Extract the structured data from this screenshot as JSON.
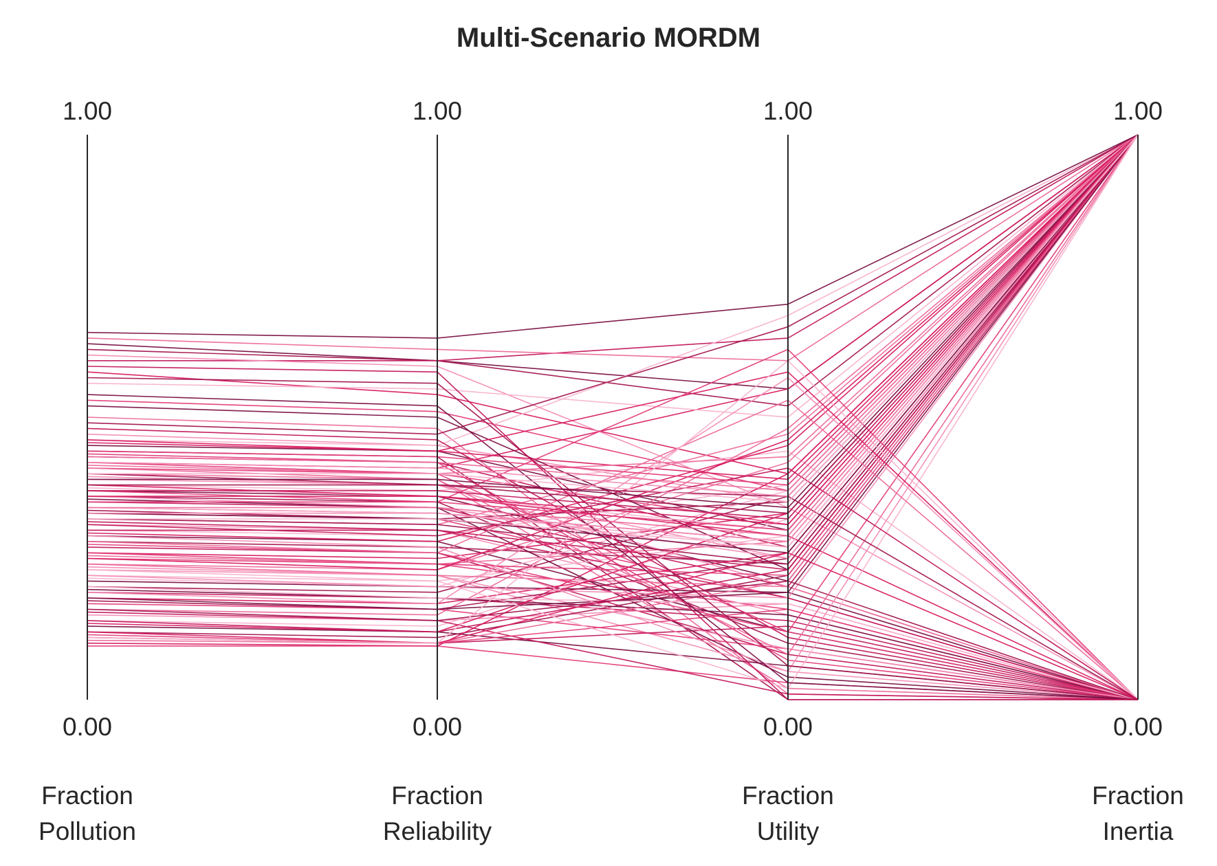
{
  "chart_data": {
    "type": "parallel_coordinates",
    "title": "Multi-Scenario MORDM",
    "axes": [
      {
        "name": [
          "Fraction",
          "Pollution"
        ],
        "range": [
          0,
          1
        ],
        "max_label": "1.00",
        "min_label": "0.00"
      },
      {
        "name": [
          "Fraction",
          "Reliability"
        ],
        "range": [
          0,
          1
        ],
        "max_label": "1.00",
        "min_label": "0.00"
      },
      {
        "name": [
          "Fraction",
          "Utility"
        ],
        "range": [
          0,
          1
        ],
        "max_label": "1.00",
        "min_label": "0.00"
      },
      {
        "name": [
          "Fraction",
          "Inertia"
        ],
        "range": [
          0,
          1
        ],
        "max_label": "1.00",
        "min_label": "0.00"
      }
    ],
    "colors": [
      "#7a1144",
      "#a3164f",
      "#c2185b",
      "#d81b60",
      "#e33d7a",
      "#ec6a9a",
      "#f38db5",
      "#f8b3cd"
    ],
    "lines": [
      [
        0.63,
        0.6,
        0.55,
        1.0
      ],
      [
        0.62,
        0.6,
        0.52,
        1.0
      ],
      [
        0.6,
        0.6,
        0.64,
        1.0
      ],
      [
        0.58,
        0.54,
        0.4,
        1.0
      ],
      [
        0.53,
        0.51,
        0.37,
        1.0
      ],
      [
        0.5,
        0.48,
        0.01,
        0.0
      ],
      [
        0.47,
        0.45,
        0.35,
        1.0
      ],
      [
        0.46,
        0.45,
        0.68,
        1.0
      ],
      [
        0.45,
        0.44,
        0.3,
        1.0
      ],
      [
        0.44,
        0.43,
        0.0,
        0.0
      ],
      [
        0.43,
        0.42,
        0.27,
        1.0
      ],
      [
        0.42,
        0.41,
        0.55,
        1.0
      ],
      [
        0.41,
        0.4,
        0.31,
        1.0
      ],
      [
        0.4,
        0.39,
        0.02,
        0.0
      ],
      [
        0.39,
        0.38,
        0.25,
        1.0
      ],
      [
        0.38,
        0.37,
        0.44,
        0.0
      ],
      [
        0.37,
        0.36,
        0.21,
        1.0
      ],
      [
        0.36,
        0.35,
        0.1,
        0.0
      ],
      [
        0.35,
        0.34,
        0.2,
        1.0
      ],
      [
        0.34,
        0.33,
        0.28,
        1.0
      ],
      [
        0.33,
        0.32,
        0.18,
        0.0
      ],
      [
        0.32,
        0.31,
        0.47,
        1.0
      ],
      [
        0.31,
        0.3,
        0.15,
        0.0
      ],
      [
        0.3,
        0.29,
        0.38,
        1.0
      ],
      [
        0.29,
        0.28,
        0.12,
        0.0
      ],
      [
        0.28,
        0.27,
        0.24,
        1.0
      ],
      [
        0.27,
        0.26,
        0.08,
        0.0
      ],
      [
        0.26,
        0.25,
        0.33,
        1.0
      ],
      [
        0.25,
        0.24,
        0.16,
        0.0
      ],
      [
        0.24,
        0.23,
        0.42,
        1.0
      ],
      [
        0.23,
        0.22,
        0.05,
        0.0
      ],
      [
        0.22,
        0.21,
        0.29,
        1.0
      ],
      [
        0.21,
        0.2,
        0.19,
        0.0
      ],
      [
        0.2,
        0.19,
        0.36,
        1.0
      ],
      [
        0.19,
        0.18,
        0.14,
        0.0
      ],
      [
        0.18,
        0.17,
        0.26,
        1.0
      ],
      [
        0.17,
        0.16,
        0.09,
        0.0
      ],
      [
        0.16,
        0.15,
        0.48,
        1.0
      ],
      [
        0.15,
        0.14,
        0.17,
        0.0
      ],
      [
        0.14,
        0.13,
        0.32,
        1.0
      ],
      [
        0.13,
        0.12,
        0.06,
        0.0
      ],
      [
        0.12,
        0.11,
        0.22,
        1.0
      ],
      [
        0.11,
        0.1,
        0.13,
        0.0
      ],
      [
        0.1,
        0.095,
        0.4,
        1.0
      ],
      [
        0.095,
        0.095,
        0.03,
        0.0
      ],
      [
        0.64,
        0.62,
        0.6,
        1.0
      ],
      [
        0.61,
        0.59,
        0.34,
        0.0
      ],
      [
        0.56,
        0.55,
        0.5,
        1.0
      ],
      [
        0.52,
        0.5,
        0.23,
        1.0
      ],
      [
        0.49,
        0.47,
        0.66,
        1.0
      ],
      [
        0.48,
        0.46,
        0.11,
        0.0
      ],
      [
        0.455,
        0.44,
        0.39,
        1.0
      ],
      [
        0.435,
        0.42,
        0.07,
        0.0
      ],
      [
        0.415,
        0.4,
        0.43,
        1.0
      ],
      [
        0.395,
        0.38,
        0.2,
        0.0
      ],
      [
        0.375,
        0.36,
        0.3,
        1.0
      ],
      [
        0.355,
        0.34,
        0.04,
        0.0
      ],
      [
        0.335,
        0.32,
        0.35,
        1.0
      ],
      [
        0.315,
        0.3,
        0.18,
        0.0
      ],
      [
        0.295,
        0.28,
        0.45,
        1.0
      ],
      [
        0.275,
        0.26,
        0.12,
        0.0
      ],
      [
        0.255,
        0.24,
        0.28,
        1.0
      ],
      [
        0.235,
        0.22,
        0.09,
        0.0
      ],
      [
        0.215,
        0.2,
        0.37,
        1.0
      ],
      [
        0.195,
        0.18,
        0.15,
        0.0
      ],
      [
        0.175,
        0.16,
        0.25,
        1.0
      ],
      [
        0.155,
        0.14,
        0.01,
        0.0
      ],
      [
        0.135,
        0.12,
        0.33,
        1.0
      ],
      [
        0.115,
        0.1,
        0.16,
        0.0
      ],
      [
        0.105,
        0.1,
        0.21,
        1.0
      ],
      [
        0.36,
        0.34,
        0.25,
        1.0
      ],
      [
        0.34,
        0.33,
        0.27,
        1.0
      ],
      [
        0.33,
        0.32,
        0.26,
        1.0
      ],
      [
        0.32,
        0.31,
        0.24,
        1.0
      ],
      [
        0.3,
        0.3,
        0.23,
        1.0
      ],
      [
        0.38,
        0.36,
        0.29,
        0.0
      ],
      [
        0.26,
        0.24,
        0.22,
        1.0
      ],
      [
        0.24,
        0.22,
        0.2,
        0.0
      ],
      [
        0.22,
        0.2,
        0.18,
        1.0
      ],
      [
        0.2,
        0.18,
        0.17,
        0.0
      ],
      [
        0.18,
        0.16,
        0.19,
        1.0
      ],
      [
        0.16,
        0.14,
        0.21,
        0.0
      ],
      [
        0.14,
        0.12,
        0.23,
        1.0
      ],
      [
        0.12,
        0.1,
        0.26,
        0.0
      ],
      [
        0.42,
        0.4,
        0.12,
        1.0
      ],
      [
        0.41,
        0.39,
        0.08,
        1.0
      ],
      [
        0.29,
        0.27,
        0.05,
        1.0
      ],
      [
        0.23,
        0.21,
        0.02,
        1.0
      ],
      [
        0.54,
        0.52,
        0.03,
        0.0
      ],
      [
        0.57,
        0.56,
        0.06,
        0.0
      ],
      [
        0.59,
        0.58,
        0.0,
        0.0
      ],
      [
        0.46,
        0.44,
        0.58,
        0.0
      ],
      [
        0.37,
        0.35,
        0.62,
        0.0
      ],
      [
        0.28,
        0.26,
        0.53,
        0.0
      ],
      [
        0.19,
        0.17,
        0.57,
        0.0
      ],
      [
        0.11,
        0.1,
        0.6,
        0.0
      ],
      [
        0.65,
        0.64,
        0.7,
        1.0
      ],
      [
        0.4,
        0.38,
        0.36,
        0.0
      ],
      [
        0.31,
        0.29,
        0.41,
        0.0
      ],
      [
        0.25,
        0.23,
        0.46,
        1.0
      ],
      [
        0.44,
        0.43,
        0.38,
        1.0
      ],
      [
        0.43,
        0.42,
        0.37,
        1.0
      ],
      [
        0.42,
        0.41,
        0.36,
        1.0
      ],
      [
        0.4,
        0.4,
        0.35,
        1.0
      ],
      [
        0.39,
        0.39,
        0.34,
        1.0
      ],
      [
        0.38,
        0.38,
        0.33,
        1.0
      ],
      [
        0.37,
        0.37,
        0.32,
        1.0
      ],
      [
        0.36,
        0.36,
        0.31,
        1.0
      ],
      [
        0.35,
        0.35,
        0.3,
        1.0
      ],
      [
        0.34,
        0.34,
        0.29,
        1.0
      ],
      [
        0.33,
        0.33,
        0.28,
        1.0
      ],
      [
        0.32,
        0.32,
        0.27,
        1.0
      ]
    ]
  }
}
